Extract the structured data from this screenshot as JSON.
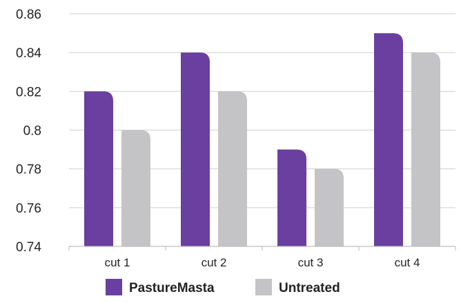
{
  "chart_data": {
    "type": "bar",
    "categories": [
      "cut 1",
      "cut 2",
      "cut 3",
      "cut 4"
    ],
    "series": [
      {
        "name": "PastureMasta",
        "color": "#6a3fa0",
        "values": [
          0.82,
          0.84,
          0.79,
          0.85
        ]
      },
      {
        "name": "Untreated",
        "color": "#c4c4c6",
        "values": [
          0.8,
          0.82,
          0.78,
          0.84
        ]
      }
    ],
    "yticks": [
      "0.74",
      "0.76",
      "0.78",
      "0.8",
      "0.82",
      "0.84",
      "0.86"
    ],
    "ylim": [
      0.74,
      0.86
    ],
    "grid": true,
    "legend_position": "bottom"
  }
}
